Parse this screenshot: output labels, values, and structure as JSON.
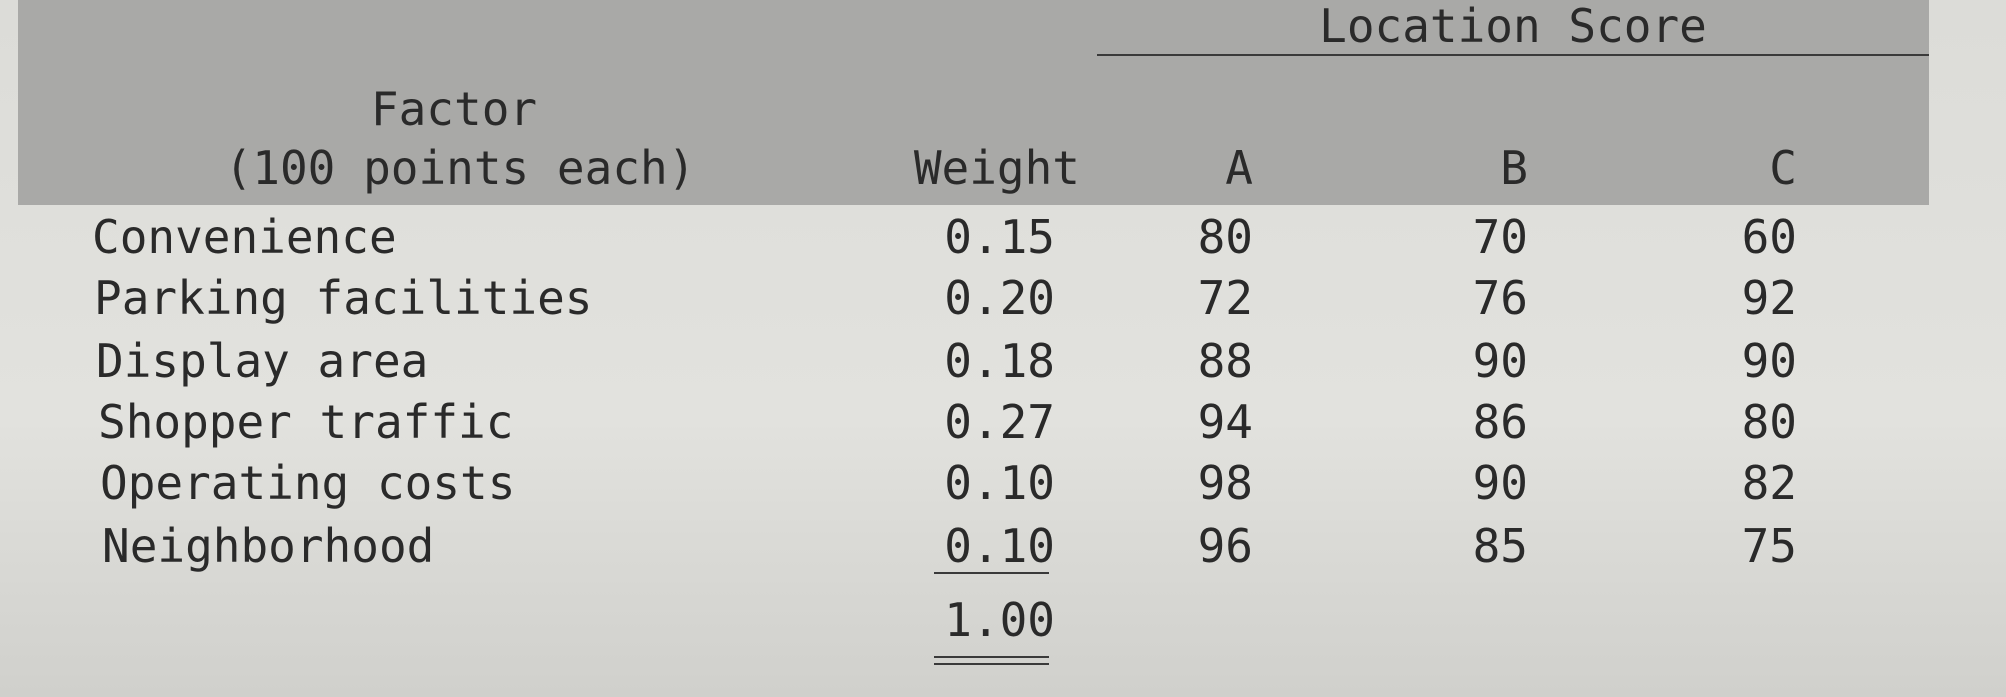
{
  "table": {
    "group_header": "Location Score",
    "headers": [
      "Factor",
      "(100 points each)",
      "Weight",
      "A",
      "B",
      "C"
    ],
    "rows": [
      [
        "Convenience",
        "0.15",
        "80",
        "70",
        "60"
      ],
      [
        "Parking facilities",
        "0.20",
        "72",
        "76",
        "92"
      ],
      [
        "Display area",
        "0.18",
        "88",
        "90",
        "90"
      ],
      [
        "Shopper traffic",
        "0.27",
        "94",
        "86",
        "80"
      ],
      [
        "Operating costs",
        "0.10",
        "98",
        "90",
        "82"
      ],
      [
        "Neighborhood",
        "0.10",
        "96",
        "85",
        "75"
      ]
    ],
    "total": "1.00"
  }
}
